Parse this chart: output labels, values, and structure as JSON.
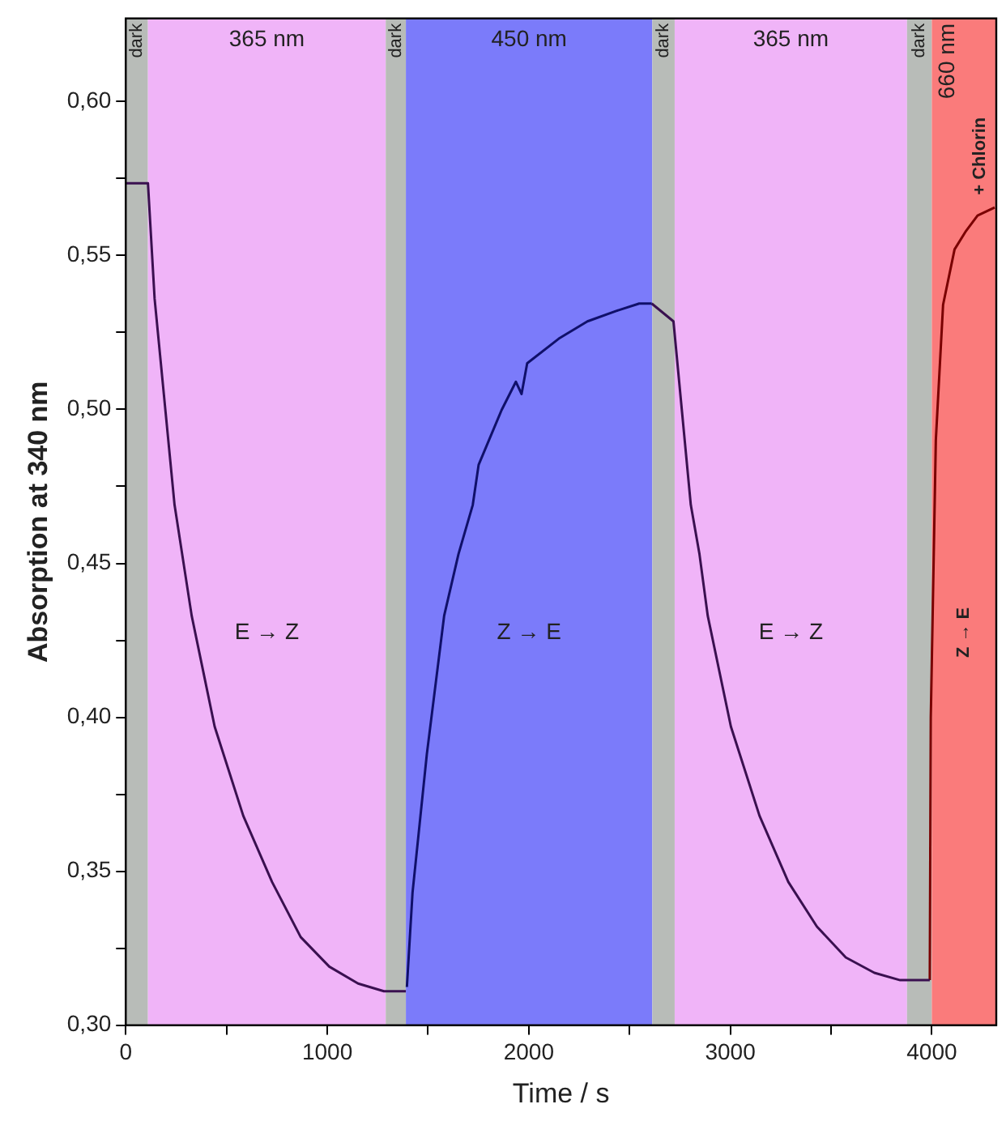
{
  "chart_data": {
    "type": "line",
    "xlabel": "Time / s",
    "ylabel": "Absorption at 340 nm",
    "xlim": [
      0,
      4320
    ],
    "ylim": [
      0.3,
      0.627
    ],
    "xticks": [
      0,
      {
        "value": 500,
        "label": null
      },
      1000,
      {
        "value": 1500,
        "label": null
      },
      2000,
      {
        "value": 2500,
        "label": null
      },
      3000,
      {
        "value": 3500,
        "label": null
      },
      4000
    ],
    "yticks": [
      {
        "value": 0.3,
        "label": "0,30"
      },
      {
        "value": 0.325,
        "label": null
      },
      {
        "value": 0.35,
        "label": "0,35"
      },
      {
        "value": 0.375,
        "label": null
      },
      {
        "value": 0.4,
        "label": "0,40"
      },
      {
        "value": 0.425,
        "label": null
      },
      {
        "value": 0.45,
        "label": "0,45"
      },
      {
        "value": 0.475,
        "label": null
      },
      {
        "value": 0.5,
        "label": "0,50"
      },
      {
        "value": 0.525,
        "label": null
      },
      {
        "value": 0.55,
        "label": "0,55"
      },
      {
        "value": 0.575,
        "label": null
      },
      {
        "value": 0.6,
        "label": "0,60"
      }
    ],
    "grid": false,
    "legend": false,
    "marker": "none",
    "line_style": "solid",
    "series": [
      {
        "color": "#3a1050",
        "x": [
          0,
          110,
          143,
          242,
          327,
          441,
          583,
          726,
          868,
          1010,
          1153,
          1281,
          1390
        ],
        "values": [
          0.5735,
          0.5735,
          0.536,
          0.469,
          0.433,
          0.397,
          0.368,
          0.3465,
          0.3286,
          0.319,
          0.3135,
          0.311,
          0.311
        ]
      },
      {
        "color": "#10106a",
        "x": [
          1395,
          1423,
          1494,
          1580,
          1651,
          1722,
          1751,
          1865,
          1936,
          1964,
          1992,
          2149,
          2291,
          2434,
          2548,
          2610
        ],
        "values": [
          0.3124,
          0.343,
          0.388,
          0.433,
          0.453,
          0.469,
          0.482,
          0.4998,
          0.509,
          0.505,
          0.515,
          0.523,
          0.5286,
          0.532,
          0.5344,
          0.5344
        ]
      },
      {
        "color": "#3a1050",
        "x": [
          2610,
          2718,
          2804,
          2847,
          2888,
          3003,
          3145,
          3288,
          3430,
          3573,
          3715,
          3843,
          3990
        ],
        "values": [
          0.5344,
          0.5286,
          0.469,
          0.453,
          0.433,
          0.397,
          0.368,
          0.3465,
          0.332,
          0.322,
          0.317,
          0.3146,
          0.3146
        ]
      },
      {
        "color": "#7a0000",
        "x": [
          3990,
          3995,
          4020,
          4056,
          4113,
          4170,
          4227,
          4312
        ],
        "values": [
          0.3146,
          0.4,
          0.49,
          0.534,
          0.552,
          0.558,
          0.563,
          0.5656
        ]
      }
    ],
    "bands": [
      {
        "axis": "x",
        "from": 0,
        "to": 110,
        "label": "dark",
        "color": "#b8bcb8"
      },
      {
        "axis": "x",
        "from": 110,
        "to": 1290,
        "label": "365 nm",
        "color": "#f0b4f8"
      },
      {
        "axis": "x",
        "from": 1290,
        "to": 1390,
        "label": "dark",
        "color": "#b8bcb8"
      },
      {
        "axis": "x",
        "from": 1390,
        "to": 2613,
        "label": "450 nm",
        "color": "#7b7bfa"
      },
      {
        "axis": "x",
        "from": 2613,
        "to": 2724,
        "label": "dark",
        "color": "#b8bcb8"
      },
      {
        "axis": "x",
        "from": 2724,
        "to": 3877,
        "label": "365 nm",
        "color": "#f0b4f8"
      },
      {
        "axis": "x",
        "from": 3877,
        "to": 4000,
        "label": "dark",
        "color": "#b8bcb8"
      },
      {
        "axis": "x",
        "from": 4000,
        "to": 4320,
        "label": "660 nm",
        "color": "#fa7b7b"
      }
    ],
    "annotations": [
      "E → Z",
      "Z → E",
      "E → Z",
      "Z → E",
      "+ Chlorin"
    ]
  }
}
